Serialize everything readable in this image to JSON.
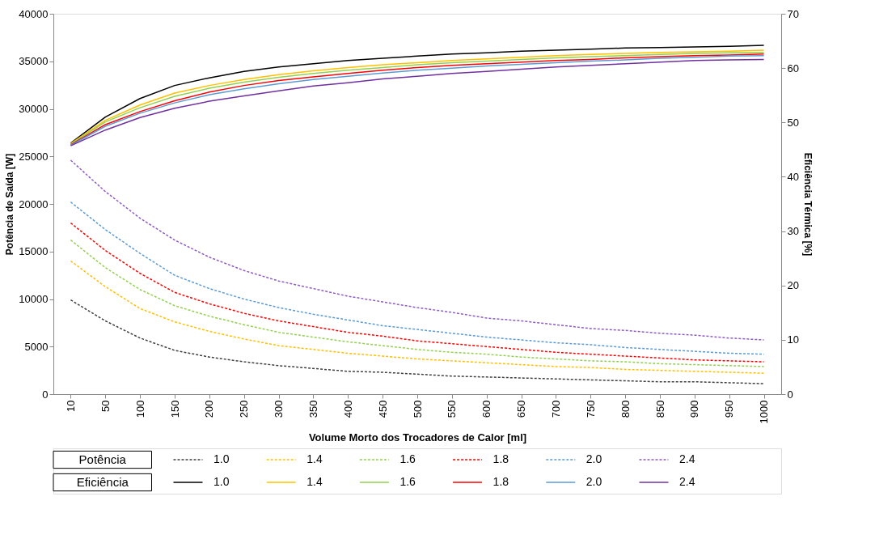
{
  "chart_data": {
    "type": "line",
    "xlabel": "Volume Morto dos Trocadores de Calor [ml]",
    "ylabel": "Potência de Saída [W]",
    "y2label": "Eficiência Térmica [%]",
    "categories": [
      "10",
      "50",
      "100",
      "150",
      "200",
      "250",
      "300",
      "350",
      "400",
      "450",
      "500",
      "550",
      "600",
      "650",
      "700",
      "750",
      "800",
      "850",
      "900",
      "950",
      "1000"
    ],
    "ylim": [
      0,
      40000
    ],
    "yticks": [
      0,
      5000,
      10000,
      15000,
      20000,
      25000,
      30000,
      35000,
      40000
    ],
    "y2lim": [
      0,
      70
    ],
    "y2ticks": [
      0,
      10,
      20,
      30,
      40,
      50,
      60,
      70
    ],
    "grid": false,
    "legend": "bottom",
    "annotations": [
      "Potência",
      "Eficiência"
    ],
    "series": [
      {
        "name": "1.0",
        "color": "#404040",
        "line_style": "dashed",
        "axis": "y",
        "values": [
          9900,
          7700,
          5900,
          4600,
          3900,
          3400,
          3000,
          2700,
          2400,
          2300,
          2100,
          1900,
          1800,
          1700,
          1600,
          1500,
          1400,
          1300,
          1300,
          1200,
          1100
        ]
      },
      {
        "name": "1.4",
        "color": "#ffc000",
        "line_style": "dashed",
        "axis": "y",
        "values": [
          14000,
          11300,
          9000,
          7600,
          6600,
          5800,
          5100,
          4700,
          4300,
          4000,
          3700,
          3500,
          3300,
          3100,
          2900,
          2800,
          2600,
          2500,
          2400,
          2300,
          2200
        ]
      },
      {
        "name": "1.6",
        "color": "#92d050",
        "line_style": "dashed",
        "axis": "y",
        "values": [
          16200,
          13300,
          11000,
          9300,
          8200,
          7300,
          6500,
          6000,
          5500,
          5100,
          4700,
          4400,
          4200,
          3900,
          3700,
          3500,
          3400,
          3200,
          3100,
          3000,
          2900
        ]
      },
      {
        "name": "1.8",
        "color": "#ff0000",
        "line_style": "dashed",
        "axis": "y",
        "values": [
          18000,
          15100,
          12700,
          10700,
          9500,
          8500,
          7700,
          7100,
          6500,
          6100,
          5600,
          5300,
          5000,
          4700,
          4400,
          4200,
          4000,
          3800,
          3600,
          3500,
          3400
        ]
      },
      {
        "name": "2.0",
        "color": "#5b9bd5",
        "line_style": "dashed",
        "axis": "y",
        "values": [
          20200,
          17300,
          14800,
          12500,
          11100,
          10000,
          9100,
          8400,
          7800,
          7200,
          6800,
          6400,
          6000,
          5700,
          5400,
          5200,
          4900,
          4700,
          4500,
          4300,
          4200
        ]
      },
      {
        "name": "2.4",
        "color": "#8e5cc4",
        "line_style": "dashed",
        "axis": "y",
        "values": [
          24600,
          21300,
          18500,
          16200,
          14400,
          13000,
          11900,
          11100,
          10300,
          9700,
          9100,
          8600,
          8000,
          7700,
          7300,
          6900,
          6700,
          6400,
          6200,
          5900,
          5700
        ]
      },
      {
        "name": "1.0",
        "color": "#000000",
        "line_style": "solid",
        "axis": "y2",
        "values": [
          46.2,
          51.0,
          54.4,
          56.8,
          58.2,
          59.4,
          60.2,
          60.8,
          61.4,
          61.8,
          62.2,
          62.6,
          62.8,
          63.1,
          63.3,
          63.5,
          63.7,
          63.8,
          63.9,
          64.0,
          64.2
        ]
      },
      {
        "name": "1.4",
        "color": "#ffc000",
        "line_style": "solid",
        "axis": "y2",
        "values": [
          46.1,
          50.4,
          53.2,
          55.4,
          56.8,
          57.9,
          58.8,
          59.5,
          60.1,
          60.6,
          61.0,
          61.4,
          61.7,
          62.0,
          62.3,
          62.5,
          62.7,
          62.9,
          63.0,
          63.1,
          63.3
        ]
      },
      {
        "name": "1.6",
        "color": "#92d050",
        "line_style": "solid",
        "axis": "y2",
        "values": [
          46.0,
          50.1,
          52.7,
          54.8,
          56.3,
          57.4,
          58.3,
          59.0,
          59.6,
          60.1,
          60.6,
          61.0,
          61.3,
          61.6,
          61.9,
          62.1,
          62.3,
          62.5,
          62.7,
          62.8,
          62.9
        ]
      },
      {
        "name": "1.8",
        "color": "#ff0000",
        "line_style": "solid",
        "axis": "y2",
        "values": [
          45.9,
          49.6,
          52.0,
          54.0,
          55.6,
          56.8,
          57.7,
          58.4,
          59.0,
          59.6,
          60.1,
          60.5,
          60.8,
          61.1,
          61.4,
          61.6,
          61.9,
          62.1,
          62.3,
          62.4,
          62.6
        ]
      },
      {
        "name": "2.0",
        "color": "#5b9bd5",
        "line_style": "solid",
        "axis": "y2",
        "values": [
          45.8,
          49.3,
          51.7,
          53.6,
          55.1,
          56.2,
          57.1,
          57.9,
          58.5,
          59.1,
          59.6,
          60.0,
          60.4,
          60.7,
          61.0,
          61.3,
          61.5,
          61.8,
          62.0,
          62.2,
          62.3
        ]
      },
      {
        "name": "2.4",
        "color": "#7030a0",
        "line_style": "solid",
        "axis": "y2",
        "values": [
          45.7,
          48.6,
          50.9,
          52.6,
          53.9,
          54.9,
          55.8,
          56.7,
          57.3,
          58.0,
          58.5,
          59.0,
          59.4,
          59.8,
          60.2,
          60.5,
          60.8,
          61.1,
          61.4,
          61.5,
          61.6
        ]
      }
    ]
  }
}
